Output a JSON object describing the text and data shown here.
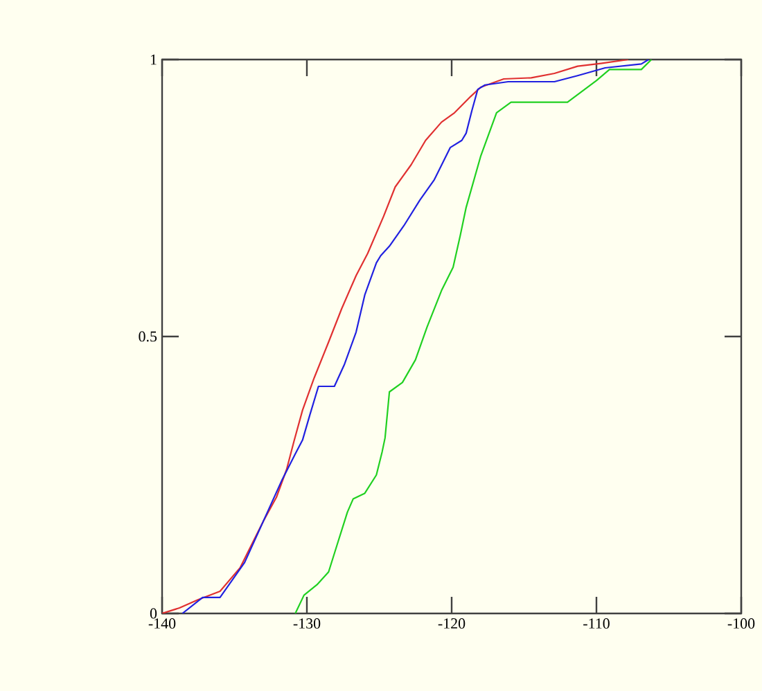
{
  "chart_data": {
    "type": "line",
    "xlim": [
      -140,
      -100
    ],
    "ylim": [
      0,
      1
    ],
    "xticks": [
      -140,
      -130,
      -120,
      -110,
      -100
    ],
    "yticks": [
      0,
      0.5,
      1
    ],
    "grid": false,
    "marker": "none",
    "line_style": "solid",
    "series": [
      {
        "color": "#e03030",
        "x": [
          -140,
          -138.8,
          -137.5,
          -136.0,
          -134.6,
          -133.0,
          -132.1,
          -131.4,
          -130.9,
          -130.3,
          -129.5,
          -128.5,
          -127.6,
          -126.6,
          -125.8,
          -124.7,
          -123.9,
          -122.8,
          -121.8,
          -120.7,
          -119.8,
          -118.7,
          -118.0,
          -116.4,
          -114.5,
          -112.9,
          -111.3,
          -109.7,
          -107.8
        ],
        "values": [
          0,
          0.01,
          0.025,
          0.04,
          0.083,
          0.167,
          0.21,
          0.26,
          0.31,
          0.367,
          0.425,
          0.49,
          0.55,
          0.61,
          0.65,
          0.717,
          0.77,
          0.81,
          0.854,
          0.887,
          0.904,
          0.933,
          0.95,
          0.965,
          0.967,
          0.975,
          0.988,
          0.993,
          1.0
        ]
      },
      {
        "color": "#2020e0",
        "x": [
          -138.6,
          -137.2,
          -136.0,
          -134.3,
          -133.0,
          -131.7,
          -130.8,
          -130.3,
          -129.8,
          -129.2,
          -128.1,
          -127.4,
          -126.6,
          -126.0,
          -125.2,
          -124.9,
          -124.3,
          -123.3,
          -122.2,
          -121.2,
          -120.1,
          -119.3,
          -119.0,
          -118.6,
          -118.2,
          -117.7,
          -116.1,
          -112.9,
          -111.3,
          -109.4,
          -106.9,
          -106.4
        ],
        "values": [
          0,
          0.029,
          0.029,
          0.092,
          0.167,
          0.242,
          0.288,
          0.313,
          0.358,
          0.41,
          0.41,
          0.45,
          0.508,
          0.575,
          0.633,
          0.646,
          0.663,
          0.7,
          0.746,
          0.783,
          0.841,
          0.854,
          0.867,
          0.908,
          0.946,
          0.954,
          0.96,
          0.96,
          0.971,
          0.985,
          0.992,
          1.0
        ]
      },
      {
        "color": "#20d020",
        "x": [
          -130.8,
          -130.2,
          -129.3,
          -128.5,
          -127.9,
          -127.2,
          -126.8,
          -126.0,
          -125.2,
          -124.8,
          -124.6,
          -124.3,
          -123.4,
          -122.5,
          -121.7,
          -120.7,
          -119.9,
          -119.4,
          -119.0,
          -118.0,
          -116.9,
          -115.9,
          -112.0,
          -110.0,
          -109.1,
          -106.9,
          -106.2
        ],
        "values": [
          0,
          0.033,
          0.052,
          0.075,
          0.125,
          0.183,
          0.207,
          0.217,
          0.25,
          0.292,
          0.317,
          0.4,
          0.417,
          0.458,
          0.517,
          0.583,
          0.625,
          0.683,
          0.733,
          0.825,
          0.904,
          0.923,
          0.923,
          0.962,
          0.982,
          0.982,
          1.0
        ]
      }
    ]
  }
}
